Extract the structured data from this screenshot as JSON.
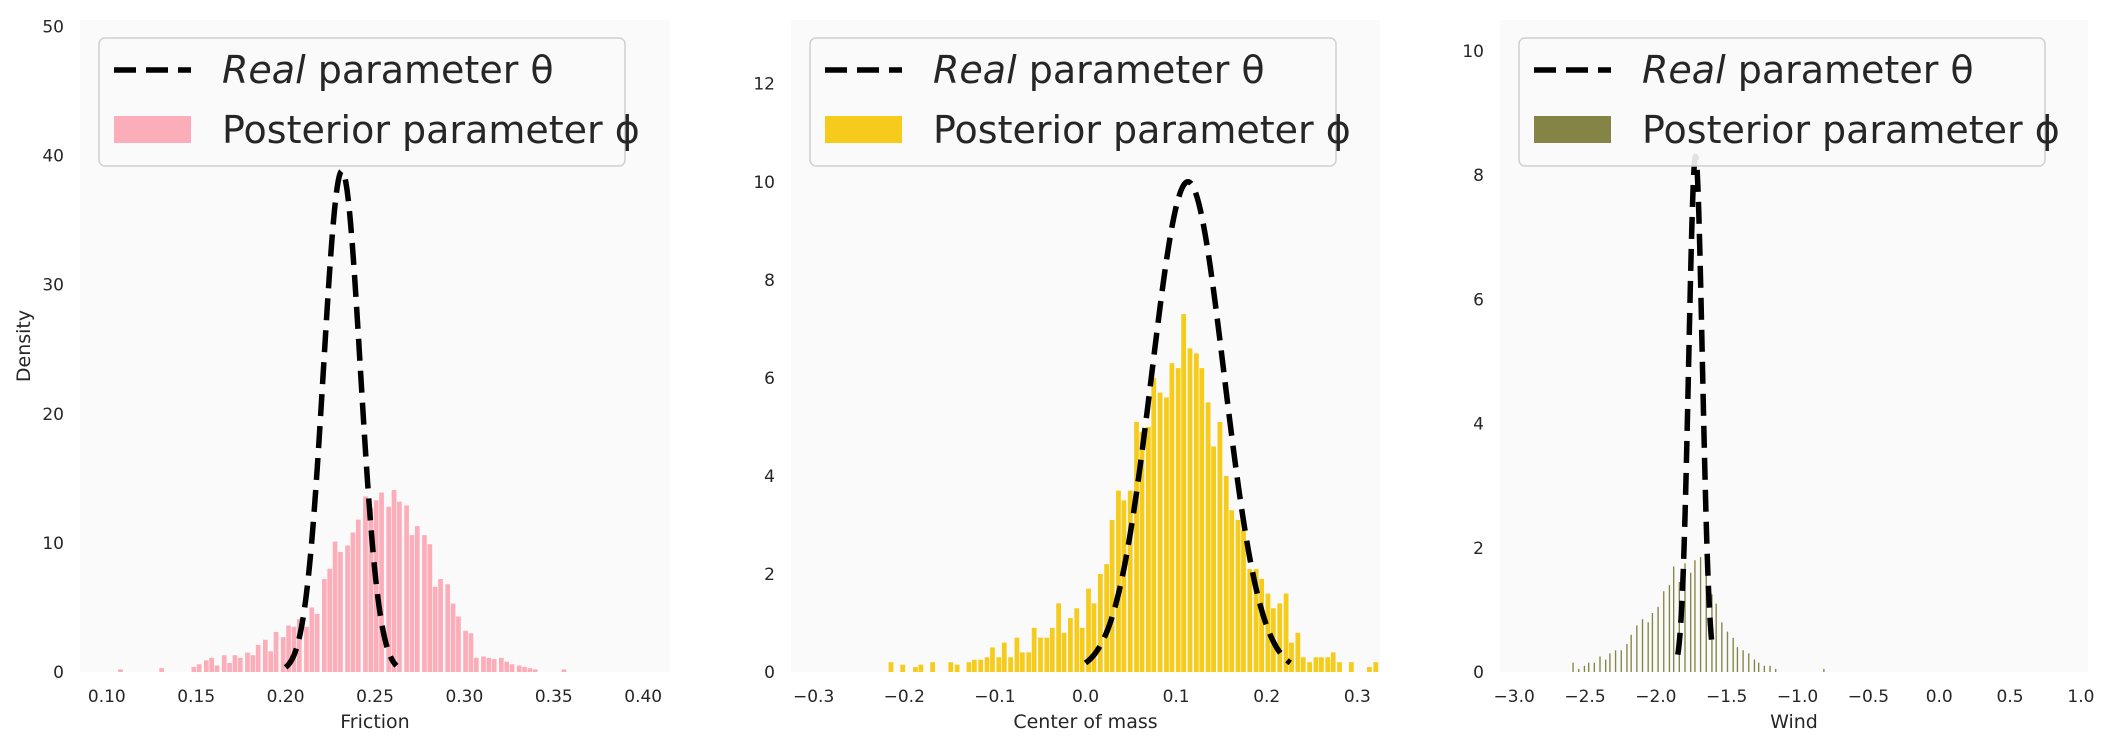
{
  "chart_data": [
    {
      "type": "histogram",
      "xlabel": "Friction",
      "ylabel": "Density",
      "xlim": [
        0.085,
        0.415
      ],
      "ylim": [
        0,
        50.5
      ],
      "xticks": [
        0.1,
        0.15,
        0.2,
        0.25,
        0.3,
        0.35,
        0.4
      ],
      "xtick_labels": [
        "0.10",
        "0.15",
        "0.20",
        "0.25",
        "0.30",
        "0.35",
        "0.40"
      ],
      "yticks": [
        0,
        10,
        20,
        30,
        40,
        50
      ],
      "ytick_labels": [
        "0",
        "10",
        "20",
        "30",
        "40",
        "50"
      ],
      "bar_color": "#fbaeba",
      "legend": {
        "position": "upper left",
        "entries": [
          {
            "text_italic": "Real",
            "text": " parameter θ",
            "style": "dashed-line",
            "color": "#000000"
          },
          {
            "text": "Posterior parameter ϕ",
            "style": "patch",
            "color": "#fbaeba"
          }
        ]
      },
      "real_theta": {
        "mean": 0.2315,
        "sd": 0.0103,
        "peak": 38.8,
        "range": [
          0.2,
          0.262
        ]
      },
      "histogram": {
        "bin_width": 0.0033,
        "bins": [
          {
            "x": 0.108,
            "d": 0.2
          },
          {
            "x": 0.131,
            "d": 0.3
          },
          {
            "x": 0.149,
            "d": 0.4
          },
          {
            "x": 0.152,
            "d": 0.6
          },
          {
            "x": 0.156,
            "d": 0.9
          },
          {
            "x": 0.159,
            "d": 1.1
          },
          {
            "x": 0.162,
            "d": 0.5
          },
          {
            "x": 0.166,
            "d": 1.3
          },
          {
            "x": 0.169,
            "d": 0.7
          },
          {
            "x": 0.172,
            "d": 1.3
          },
          {
            "x": 0.175,
            "d": 1.1
          },
          {
            "x": 0.179,
            "d": 1.5
          },
          {
            "x": 0.182,
            "d": 1.3
          },
          {
            "x": 0.185,
            "d": 2.1
          },
          {
            "x": 0.189,
            "d": 2.5
          },
          {
            "x": 0.192,
            "d": 1.6
          },
          {
            "x": 0.195,
            "d": 3.1
          },
          {
            "x": 0.199,
            "d": 2.7
          },
          {
            "x": 0.202,
            "d": 3.6
          },
          {
            "x": 0.205,
            "d": 3.5
          },
          {
            "x": 0.208,
            "d": 4.1
          },
          {
            "x": 0.212,
            "d": 3.5
          },
          {
            "x": 0.215,
            "d": 5.0
          },
          {
            "x": 0.218,
            "d": 4.5
          },
          {
            "x": 0.222,
            "d": 7.2
          },
          {
            "x": 0.225,
            "d": 8.0
          },
          {
            "x": 0.228,
            "d": 10.1
          },
          {
            "x": 0.231,
            "d": 9.3
          },
          {
            "x": 0.235,
            "d": 9.8
          },
          {
            "x": 0.238,
            "d": 10.8
          },
          {
            "x": 0.241,
            "d": 11.8
          },
          {
            "x": 0.245,
            "d": 13.6
          },
          {
            "x": 0.248,
            "d": 12.7
          },
          {
            "x": 0.251,
            "d": 13.3
          },
          {
            "x": 0.254,
            "d": 13.9
          },
          {
            "x": 0.258,
            "d": 12.8
          },
          {
            "x": 0.261,
            "d": 14.1
          },
          {
            "x": 0.264,
            "d": 13.2
          },
          {
            "x": 0.268,
            "d": 12.9
          },
          {
            "x": 0.271,
            "d": 10.6
          },
          {
            "x": 0.274,
            "d": 11.3
          },
          {
            "x": 0.278,
            "d": 10.6
          },
          {
            "x": 0.281,
            "d": 9.9
          },
          {
            "x": 0.284,
            "d": 6.6
          },
          {
            "x": 0.287,
            "d": 7.2
          },
          {
            "x": 0.291,
            "d": 6.8
          },
          {
            "x": 0.294,
            "d": 5.3
          },
          {
            "x": 0.297,
            "d": 4.3
          },
          {
            "x": 0.301,
            "d": 3.2
          },
          {
            "x": 0.304,
            "d": 3.0
          },
          {
            "x": 0.307,
            "d": 1.1
          },
          {
            "x": 0.311,
            "d": 1.2
          },
          {
            "x": 0.314,
            "d": 1.1
          },
          {
            "x": 0.317,
            "d": 1.0
          },
          {
            "x": 0.321,
            "d": 1.1
          },
          {
            "x": 0.324,
            "d": 0.8
          },
          {
            "x": 0.327,
            "d": 0.6
          },
          {
            "x": 0.331,
            "d": 0.5
          },
          {
            "x": 0.334,
            "d": 0.4
          },
          {
            "x": 0.337,
            "d": 0.3
          },
          {
            "x": 0.34,
            "d": 0.2
          },
          {
            "x": 0.356,
            "d": 0.2
          }
        ]
      }
    },
    {
      "type": "histogram",
      "xlabel": "Center of mass",
      "ylabel": "",
      "xlim": [
        -0.325,
        0.325
      ],
      "ylim": [
        0,
        13.3
      ],
      "xticks": [
        -0.3,
        -0.2,
        -0.1,
        0.0,
        0.1,
        0.2,
        0.3
      ],
      "xtick_labels": [
        "−0.3",
        "−0.2",
        "−0.1",
        "0.0",
        "0.1",
        "0.2",
        "0.3"
      ],
      "yticks": [
        0,
        2,
        4,
        6,
        8,
        10,
        12
      ],
      "ytick_labels": [
        "0",
        "2",
        "4",
        "6",
        "8",
        "10",
        "12"
      ],
      "bar_color": "#f5cc1b",
      "legend": {
        "position": "upper left",
        "entries": [
          {
            "text_italic": "Real",
            "text": " parameter θ",
            "style": "dashed-line",
            "color": "#000000"
          },
          {
            "text": "Posterior parameter ϕ",
            "style": "patch",
            "color": "#f5cc1b"
          }
        ]
      },
      "real_theta": {
        "mean": 0.113,
        "sd": 0.04,
        "peak": 10.0,
        "range": [
          0.0,
          0.226
        ]
      },
      "histogram": {
        "bin_width": 0.0066,
        "bins": [
          {
            "x": -0.214,
            "d": 0.2
          },
          {
            "x": -0.201,
            "d": 0.15
          },
          {
            "x": -0.187,
            "d": 0.1
          },
          {
            "x": -0.181,
            "d": 0.15
          },
          {
            "x": -0.168,
            "d": 0.2
          },
          {
            "x": -0.148,
            "d": 0.2
          },
          {
            "x": -0.141,
            "d": 0.15
          },
          {
            "x": -0.128,
            "d": 0.2
          },
          {
            "x": -0.122,
            "d": 0.25
          },
          {
            "x": -0.115,
            "d": 0.25
          },
          {
            "x": -0.108,
            "d": 0.3
          },
          {
            "x": -0.102,
            "d": 0.5
          },
          {
            "x": -0.095,
            "d": 0.3
          },
          {
            "x": -0.089,
            "d": 0.6
          },
          {
            "x": -0.082,
            "d": 0.3
          },
          {
            "x": -0.075,
            "d": 0.7
          },
          {
            "x": -0.069,
            "d": 0.4
          },
          {
            "x": -0.062,
            "d": 0.4
          },
          {
            "x": -0.056,
            "d": 0.9
          },
          {
            "x": -0.049,
            "d": 0.7
          },
          {
            "x": -0.042,
            "d": 0.7
          },
          {
            "x": -0.036,
            "d": 0.9
          },
          {
            "x": -0.029,
            "d": 1.4
          },
          {
            "x": -0.023,
            "d": 0.8
          },
          {
            "x": -0.016,
            "d": 1.1
          },
          {
            "x": -0.009,
            "d": 1.3
          },
          {
            "x": -0.003,
            "d": 0.9
          },
          {
            "x": 0.004,
            "d": 1.7
          },
          {
            "x": 0.01,
            "d": 1.4
          },
          {
            "x": 0.017,
            "d": 2.0
          },
          {
            "x": 0.024,
            "d": 2.2
          },
          {
            "x": 0.03,
            "d": 3.1
          },
          {
            "x": 0.037,
            "d": 3.7
          },
          {
            "x": 0.043,
            "d": 3.5
          },
          {
            "x": 0.05,
            "d": 3.7
          },
          {
            "x": 0.057,
            "d": 5.1
          },
          {
            "x": 0.063,
            "d": 4.9
          },
          {
            "x": 0.07,
            "d": 5.0
          },
          {
            "x": 0.076,
            "d": 6.0
          },
          {
            "x": 0.083,
            "d": 5.7
          },
          {
            "x": 0.09,
            "d": 5.6
          },
          {
            "x": 0.096,
            "d": 6.3
          },
          {
            "x": 0.103,
            "d": 6.2
          },
          {
            "x": 0.109,
            "d": 7.3
          },
          {
            "x": 0.116,
            "d": 6.6
          },
          {
            "x": 0.123,
            "d": 6.5
          },
          {
            "x": 0.129,
            "d": 6.2
          },
          {
            "x": 0.136,
            "d": 5.5
          },
          {
            "x": 0.142,
            "d": 4.6
          },
          {
            "x": 0.149,
            "d": 5.1
          },
          {
            "x": 0.156,
            "d": 4.0
          },
          {
            "x": 0.162,
            "d": 3.3
          },
          {
            "x": 0.169,
            "d": 3.1
          },
          {
            "x": 0.175,
            "d": 2.9
          },
          {
            "x": 0.182,
            "d": 2.1
          },
          {
            "x": 0.189,
            "d": 2.1
          },
          {
            "x": 0.195,
            "d": 1.9
          },
          {
            "x": 0.202,
            "d": 1.6
          },
          {
            "x": 0.208,
            "d": 1.3
          },
          {
            "x": 0.215,
            "d": 1.4
          },
          {
            "x": 0.222,
            "d": 1.6
          },
          {
            "x": 0.228,
            "d": 0.6
          },
          {
            "x": 0.235,
            "d": 0.8
          },
          {
            "x": 0.241,
            "d": 0.3
          },
          {
            "x": 0.248,
            "d": 0.2
          },
          {
            "x": 0.255,
            "d": 0.3
          },
          {
            "x": 0.261,
            "d": 0.3
          },
          {
            "x": 0.268,
            "d": 0.3
          },
          {
            "x": 0.274,
            "d": 0.4
          },
          {
            "x": 0.281,
            "d": 0.2
          },
          {
            "x": 0.294,
            "d": 0.2
          },
          {
            "x": 0.314,
            "d": 0.1
          },
          {
            "x": 0.321,
            "d": 0.2
          }
        ]
      }
    },
    {
      "type": "histogram",
      "xlabel": "Wind",
      "ylabel": "",
      "xlim": [
        -3.1,
        1.05
      ],
      "ylim": [
        0,
        10.5
      ],
      "xticks": [
        -3.0,
        -2.5,
        -2.0,
        -1.5,
        -1.0,
        -0.5,
        0.0,
        0.5,
        1.0
      ],
      "xtick_labels": [
        "−3.0",
        "−2.5",
        "−2.0",
        "−1.5",
        "−1.0",
        "−0.5",
        "0.0",
        "0.5",
        "1.0"
      ],
      "yticks": [
        0,
        2,
        4,
        6,
        8,
        10
      ],
      "ytick_labels": [
        "0",
        "2",
        "4",
        "6",
        "8",
        "10"
      ],
      "bar_color": "#848544",
      "legend": {
        "position": "upper left",
        "entries": [
          {
            "text_italic": "Real",
            "text": " parameter θ",
            "style": "dashed-line",
            "color": "#000000"
          },
          {
            "text": "Posterior parameter ϕ",
            "style": "patch",
            "color": "#848544"
          }
        ]
      },
      "real_theta": {
        "mean": -1.72,
        "sd": 0.048,
        "peak": 8.3,
        "range": [
          -1.845,
          -1.6
        ]
      },
      "histogram": {
        "bin_width": 0.018,
        "bins": [
          {
            "x": -2.58,
            "d": 0.15
          },
          {
            "x": -2.54,
            "d": 0.05
          },
          {
            "x": -2.5,
            "d": 0.1
          },
          {
            "x": -2.47,
            "d": 0.15
          },
          {
            "x": -2.43,
            "d": 0.15
          },
          {
            "x": -2.39,
            "d": 0.25
          },
          {
            "x": -2.35,
            "d": 0.2
          },
          {
            "x": -2.32,
            "d": 0.3
          },
          {
            "x": -2.28,
            "d": 0.35
          },
          {
            "x": -2.24,
            "d": 0.35
          },
          {
            "x": -2.2,
            "d": 0.45
          },
          {
            "x": -2.17,
            "d": 0.6
          },
          {
            "x": -2.13,
            "d": 0.75
          },
          {
            "x": -2.09,
            "d": 0.85
          },
          {
            "x": -2.05,
            "d": 0.8
          },
          {
            "x": -2.02,
            "d": 0.95
          },
          {
            "x": -1.98,
            "d": 1.05
          },
          {
            "x": -1.94,
            "d": 1.3
          },
          {
            "x": -1.9,
            "d": 1.4
          },
          {
            "x": -1.87,
            "d": 1.7
          },
          {
            "x": -1.83,
            "d": 1.45
          },
          {
            "x": -1.79,
            "d": 1.75
          },
          {
            "x": -1.75,
            "d": 1.6
          },
          {
            "x": -1.72,
            "d": 1.8
          },
          {
            "x": -1.68,
            "d": 1.85
          },
          {
            "x": -1.64,
            "d": 1.6
          },
          {
            "x": -1.6,
            "d": 1.25
          },
          {
            "x": -1.57,
            "d": 1.1
          },
          {
            "x": -1.53,
            "d": 0.8
          },
          {
            "x": -1.49,
            "d": 0.65
          },
          {
            "x": -1.45,
            "d": 0.55
          },
          {
            "x": -1.42,
            "d": 0.4
          },
          {
            "x": -1.38,
            "d": 0.35
          },
          {
            "x": -1.34,
            "d": 0.3
          },
          {
            "x": -1.3,
            "d": 0.2
          },
          {
            "x": -1.27,
            "d": 0.15
          },
          {
            "x": -1.23,
            "d": 0.1
          },
          {
            "x": -1.19,
            "d": 0.1
          },
          {
            "x": -1.15,
            "d": 0.05
          },
          {
            "x": -0.81,
            "d": 0.05
          }
        ]
      }
    }
  ]
}
